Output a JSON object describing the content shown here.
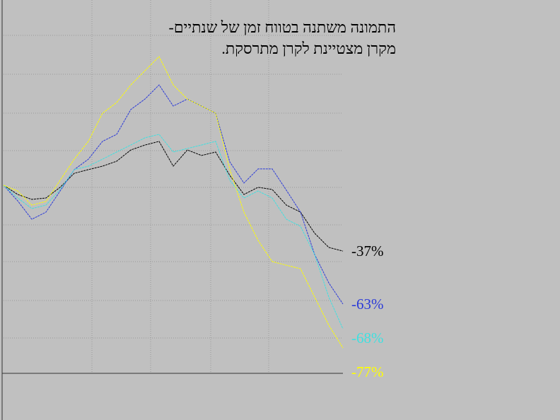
{
  "chart_data": {
    "type": "line",
    "title_lines": [
      "התמונה משתנה בטווח זמן של שנתיים-",
      "מקרן מצטיינת לקרן מתרסקת."
    ],
    "x": [
      0,
      1,
      2,
      3,
      4,
      5,
      6,
      7,
      8,
      9,
      10,
      11,
      12,
      13,
      14,
      15,
      16,
      17,
      18,
      19,
      20,
      21,
      22,
      23,
      24
    ],
    "xlim": [
      0,
      24
    ],
    "ylim": [
      0,
      200
    ],
    "series": [
      {
        "color": "#000000",
        "end_label": "-37%",
        "values": [
          102.3,
          97.3,
          94.6,
          95.4,
          101.2,
          108.8,
          110.8,
          112.7,
          115.4,
          121.5,
          124.2,
          126.2,
          112.7,
          121.5,
          118.5,
          120.4,
          107.7,
          97.3,
          101.2,
          100,
          91.5,
          87.7,
          76.2,
          68.5,
          66.5
        ]
      },
      {
        "color": "#2b3ad8",
        "end_label": "-63%",
        "values": [
          102.3,
          93.8,
          83.8,
          87.7,
          99.2,
          110.8,
          116.5,
          126.2,
          130,
          143.5,
          149.2,
          156.9,
          145.4,
          149.2,
          145.4,
          141.5,
          115,
          103.5,
          111.2,
          111.2,
          99.6,
          87.7,
          64.6,
          49.2,
          37.7
        ]
      },
      {
        "color": "#3fe0e0",
        "end_label": "-68%",
        "values": [
          102.3,
          95.4,
          89.6,
          91.5,
          100,
          110.8,
          112.7,
          116.5,
          120.4,
          124.2,
          128.1,
          130,
          120.4,
          122.3,
          124.2,
          126.2,
          105,
          95.4,
          99.2,
          95.4,
          83.8,
          80,
          64.6,
          41.5,
          24.2
        ]
      },
      {
        "color": "#ffff00",
        "end_label": "-77%",
        "values": [
          102.3,
          99.2,
          91.5,
          93.5,
          105,
          116.5,
          126.2,
          141.5,
          147.3,
          156.9,
          164.6,
          172.3,
          156.9,
          149.2,
          145.4,
          141.5,
          110.8,
          87.7,
          72.3,
          60.8,
          58.8,
          56.9,
          41.5,
          26.2,
          13.8
        ]
      }
    ]
  }
}
